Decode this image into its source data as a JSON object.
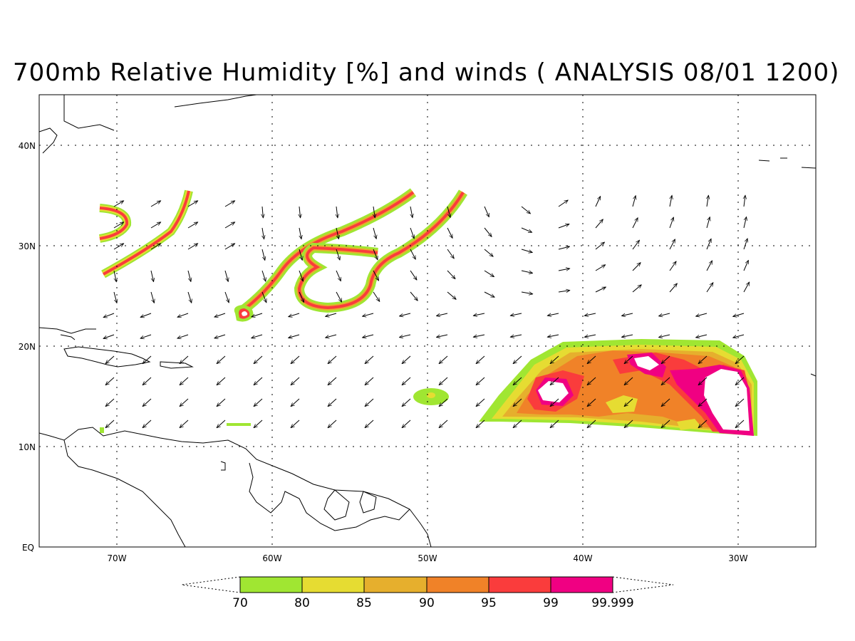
{
  "title": "700mb Relative Humidity [%] and winds ( ANALYSIS 08/01 1200)",
  "map": {
    "lon_range": [
      -75,
      -25
    ],
    "lat_range": [
      0,
      45
    ],
    "lat_ticks": [
      {
        "value": 40,
        "label": "40N"
      },
      {
        "value": 30,
        "label": "30N"
      },
      {
        "value": 20,
        "label": "20N"
      },
      {
        "value": 10,
        "label": "10N"
      },
      {
        "value": 0,
        "label": "EQ"
      }
    ],
    "lon_ticks": [
      {
        "value": -70,
        "label": "70W"
      },
      {
        "value": -60,
        "label": "60W"
      },
      {
        "value": -50,
        "label": "50W"
      },
      {
        "value": -40,
        "label": "40W"
      },
      {
        "value": -30,
        "label": "30W"
      }
    ],
    "grid": "dotted"
  },
  "colorbar": {
    "levels": [
      "70",
      "80",
      "85",
      "90",
      "95",
      "99",
      "99.999"
    ],
    "colors": [
      "#a0e632",
      "#e6dc32",
      "#e6af2d",
      "#f08228",
      "#fa3c3c",
      "#f00082"
    ]
  },
  "icons": {
    "wind": "wind-arrow-icon"
  }
}
